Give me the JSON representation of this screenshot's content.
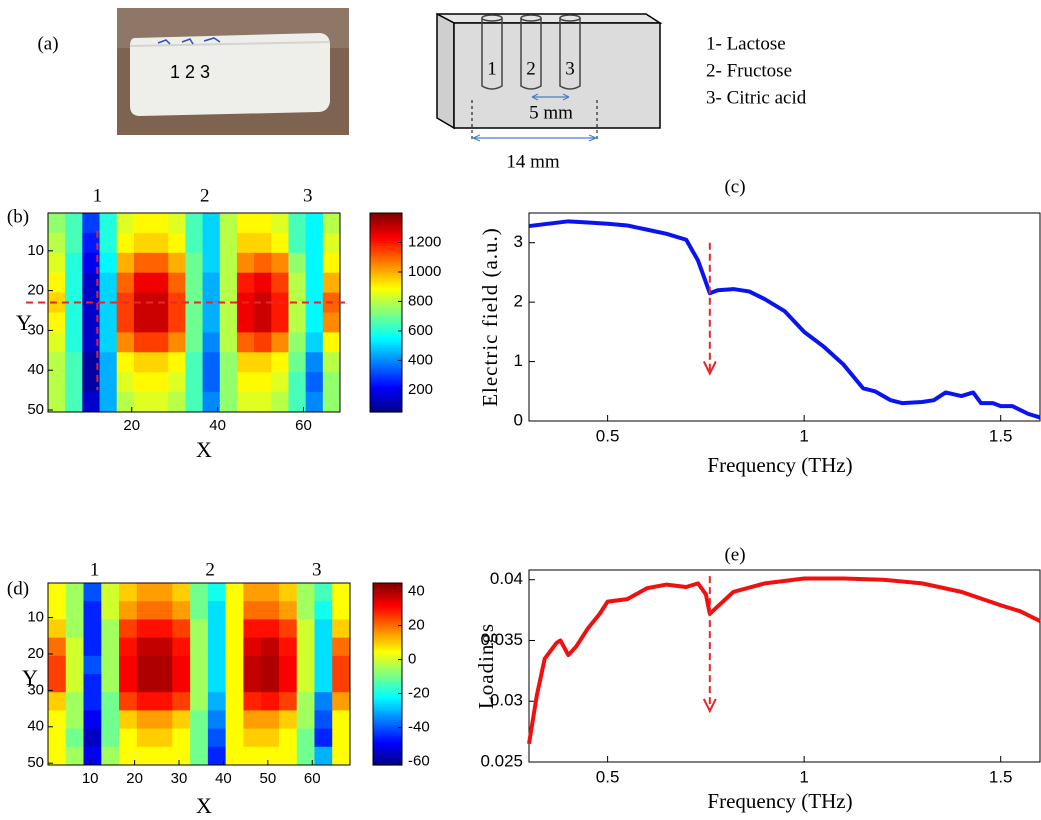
{
  "panel_labels": [
    "(a)",
    "(b)",
    "(c)",
    "(d)",
    "(e)"
  ],
  "photo": {
    "label": "1 2 3"
  },
  "diagram": {
    "holes": [
      "1",
      "2",
      "3"
    ],
    "dim_small": "5 mm",
    "dim_large": "14 mm",
    "legend": [
      "1- Lactose",
      "2- Fructose",
      "3- Citric acid"
    ]
  },
  "chart_data": [
    {
      "type": "heatmap",
      "xlabel": "X",
      "ylabel": "Y",
      "colormap": "jet",
      "xbins": [
        0.5,
        4.5,
        8.5,
        12.5,
        16.5,
        20.5,
        24.5,
        28.5,
        32.5,
        36.5,
        40.5,
        44.5,
        48.5,
        52.5,
        56.5,
        60.5,
        64.5,
        68.5
      ],
      "ybins": [
        0.5,
        5.5,
        10.5,
        15.5,
        20.5,
        25.5,
        30.5,
        35.5,
        40.5,
        45.5,
        50.5
      ],
      "z": [
        [
          750,
          650,
          300,
          600,
          850,
          900,
          900,
          850,
          650,
          500,
          800,
          900,
          900,
          850,
          650,
          550,
          800
        ],
        [
          800,
          650,
          250,
          600,
          900,
          950,
          950,
          900,
          650,
          500,
          800,
          950,
          950,
          900,
          650,
          550,
          850
        ],
        [
          850,
          600,
          200,
          550,
          1000,
          1100,
          1100,
          1000,
          700,
          500,
          800,
          1050,
          1100,
          1050,
          750,
          550,
          900
        ],
        [
          900,
          600,
          150,
          500,
          1100,
          1250,
          1250,
          1100,
          700,
          450,
          800,
          1200,
          1250,
          1150,
          800,
          550,
          1000
        ],
        [
          950,
          600,
          150,
          500,
          1150,
          1300,
          1300,
          1150,
          700,
          450,
          800,
          1250,
          1300,
          1200,
          800,
          550,
          1100
        ],
        [
          900,
          600,
          150,
          500,
          1150,
          1300,
          1300,
          1150,
          700,
          450,
          800,
          1250,
          1300,
          1200,
          800,
          550,
          1050
        ],
        [
          850,
          600,
          150,
          500,
          1050,
          1150,
          1150,
          1050,
          700,
          400,
          800,
          1100,
          1150,
          1050,
          750,
          500,
          900
        ],
        [
          800,
          650,
          100,
          450,
          900,
          950,
          950,
          900,
          650,
          350,
          750,
          950,
          950,
          900,
          700,
          400,
          800
        ],
        [
          800,
          650,
          100,
          450,
          850,
          900,
          900,
          850,
          650,
          350,
          750,
          900,
          900,
          850,
          650,
          350,
          750
        ],
        [
          800,
          650,
          150,
          450,
          800,
          850,
          850,
          800,
          650,
          400,
          750,
          850,
          850,
          800,
          650,
          400,
          750
        ]
      ],
      "clim": [
        50,
        1400
      ],
      "colorbar_ticks": [
        200,
        400,
        600,
        800,
        1000,
        1200
      ],
      "xlim": [
        0.5,
        68.5
      ],
      "ylim": [
        0.5,
        50.5
      ],
      "y_reversed": true,
      "xticks": [
        20,
        40,
        60
      ],
      "yticks": [
        10,
        20,
        30,
        40,
        50
      ],
      "top_labels": [
        {
          "x": 12,
          "label": "1"
        },
        {
          "x": 37,
          "label": "2"
        },
        {
          "x": 61,
          "label": "3"
        }
      ],
      "vline": {
        "x": 12,
        "y": [
          5,
          45
        ]
      },
      "hline": {
        "y": 23
      },
      "line_color": "#e8262a"
    },
    {
      "type": "line",
      "xlabel": "Frequency (THz)",
      "ylabel": "Electric field (a.u.)",
      "color": "#0a14f0",
      "x": [
        0.3,
        0.35,
        0.4,
        0.45,
        0.5,
        0.55,
        0.6,
        0.65,
        0.7,
        0.73,
        0.76,
        0.78,
        0.82,
        0.86,
        0.9,
        0.95,
        1.0,
        1.05,
        1.1,
        1.15,
        1.18,
        1.22,
        1.25,
        1.3,
        1.33,
        1.36,
        1.4,
        1.43,
        1.45,
        1.48,
        1.5,
        1.53,
        1.57,
        1.6
      ],
      "values": [
        3.28,
        3.32,
        3.36,
        3.34,
        3.32,
        3.29,
        3.22,
        3.15,
        3.05,
        2.7,
        2.15,
        2.2,
        2.22,
        2.18,
        2.05,
        1.85,
        1.5,
        1.25,
        0.95,
        0.55,
        0.5,
        0.35,
        0.3,
        0.32,
        0.35,
        0.48,
        0.42,
        0.48,
        0.3,
        0.3,
        0.25,
        0.25,
        0.12,
        0.06
      ],
      "xlim": [
        0.3,
        1.6
      ],
      "ylim": [
        0,
        3.5
      ],
      "xticks": [
        0.5,
        1,
        1.5
      ],
      "yticks": [
        0,
        1,
        2,
        3
      ],
      "arrow": {
        "x": 0.76,
        "y": [
          3.0,
          0.8
        ]
      },
      "arrow_color": "#e8262a"
    },
    {
      "type": "heatmap",
      "xlabel": "X",
      "ylabel": "Y",
      "colormap": "jet",
      "xbins": [
        0.5,
        4.5,
        8.5,
        12.5,
        16.5,
        20.5,
        24.5,
        28.5,
        32.5,
        36.5,
        40.5,
        44.5,
        48.5,
        52.5,
        56.5,
        60.5,
        64.5,
        68.5
      ],
      "ybins": [
        0.5,
        5.5,
        10.5,
        15.5,
        20.5,
        25.5,
        30.5,
        35.5,
        40.5,
        45.5,
        50.5
      ],
      "z": [
        [
          5,
          -5,
          -40,
          0,
          10,
          15,
          15,
          10,
          -10,
          -20,
          5,
          15,
          15,
          10,
          -5,
          -15,
          5
        ],
        [
          5,
          -5,
          -45,
          0,
          15,
          20,
          20,
          15,
          -10,
          -25,
          5,
          20,
          20,
          15,
          -5,
          -20,
          5
        ],
        [
          10,
          -5,
          -45,
          -5,
          25,
          30,
          30,
          25,
          -5,
          -25,
          5,
          30,
          30,
          25,
          0,
          -25,
          10
        ],
        [
          20,
          0,
          -45,
          -5,
          30,
          38,
          38,
          30,
          -5,
          -25,
          5,
          35,
          38,
          30,
          0,
          -25,
          20
        ],
        [
          25,
          0,
          -40,
          -5,
          32,
          40,
          40,
          32,
          -5,
          -25,
          5,
          38,
          40,
          32,
          0,
          -25,
          25
        ],
        [
          25,
          0,
          -45,
          -5,
          32,
          40,
          40,
          32,
          -5,
          -25,
          5,
          38,
          40,
          32,
          0,
          -25,
          25
        ],
        [
          10,
          -5,
          -45,
          -10,
          25,
          30,
          30,
          25,
          -5,
          -30,
          5,
          28,
          30,
          25,
          -5,
          -35,
          15
        ],
        [
          5,
          -5,
          -50,
          -10,
          10,
          15,
          15,
          10,
          -10,
          -35,
          5,
          15,
          15,
          10,
          -5,
          -40,
          5
        ],
        [
          5,
          -10,
          -55,
          -10,
          5,
          10,
          10,
          5,
          -10,
          -40,
          5,
          10,
          10,
          5,
          -10,
          -45,
          5
        ],
        [
          5,
          -5,
          -50,
          -5,
          5,
          5,
          5,
          5,
          -10,
          -45,
          5,
          5,
          5,
          5,
          -10,
          -30,
          5
        ]
      ],
      "clim": [
        -62,
        45
      ],
      "colorbar_ticks": [
        -60,
        -40,
        -20,
        0,
        20,
        40
      ],
      "xlim": [
        0.5,
        68.5
      ],
      "ylim": [
        0.5,
        50.5
      ],
      "y_reversed": true,
      "xticks": [
        10,
        20,
        30,
        40,
        50,
        60
      ],
      "yticks": [
        10,
        20,
        30,
        40,
        50
      ],
      "top_labels": [
        {
          "x": 11,
          "label": "1"
        },
        {
          "x": 37,
          "label": "2"
        },
        {
          "x": 61,
          "label": "3"
        }
      ]
    },
    {
      "type": "line",
      "xlabel": "Frequency (THz)",
      "ylabel": "Loadings",
      "color": "#f01010",
      "x": [
        0.3,
        0.32,
        0.34,
        0.37,
        0.38,
        0.4,
        0.42,
        0.45,
        0.48,
        0.5,
        0.55,
        0.6,
        0.65,
        0.7,
        0.73,
        0.75,
        0.76,
        0.78,
        0.82,
        0.9,
        1.0,
        1.1,
        1.2,
        1.3,
        1.4,
        1.5,
        1.55,
        1.6
      ],
      "values": [
        0.0265,
        0.0305,
        0.0335,
        0.0348,
        0.035,
        0.0338,
        0.0345,
        0.036,
        0.0372,
        0.0382,
        0.0384,
        0.0393,
        0.0396,
        0.0394,
        0.0397,
        0.0388,
        0.0372,
        0.0378,
        0.039,
        0.0397,
        0.0401,
        0.0401,
        0.04,
        0.0397,
        0.039,
        0.0379,
        0.0374,
        0.0366
      ],
      "xlim": [
        0.3,
        1.6
      ],
      "ylim": [
        0.025,
        0.0408
      ],
      "xticks": [
        0.5,
        1,
        1.5
      ],
      "yticks": [
        0.025,
        0.03,
        0.035,
        0.04
      ],
      "arrow": {
        "x": 0.76,
        "y": [
          0.0403,
          0.0292
        ]
      },
      "arrow_color": "#e8262a"
    }
  ]
}
